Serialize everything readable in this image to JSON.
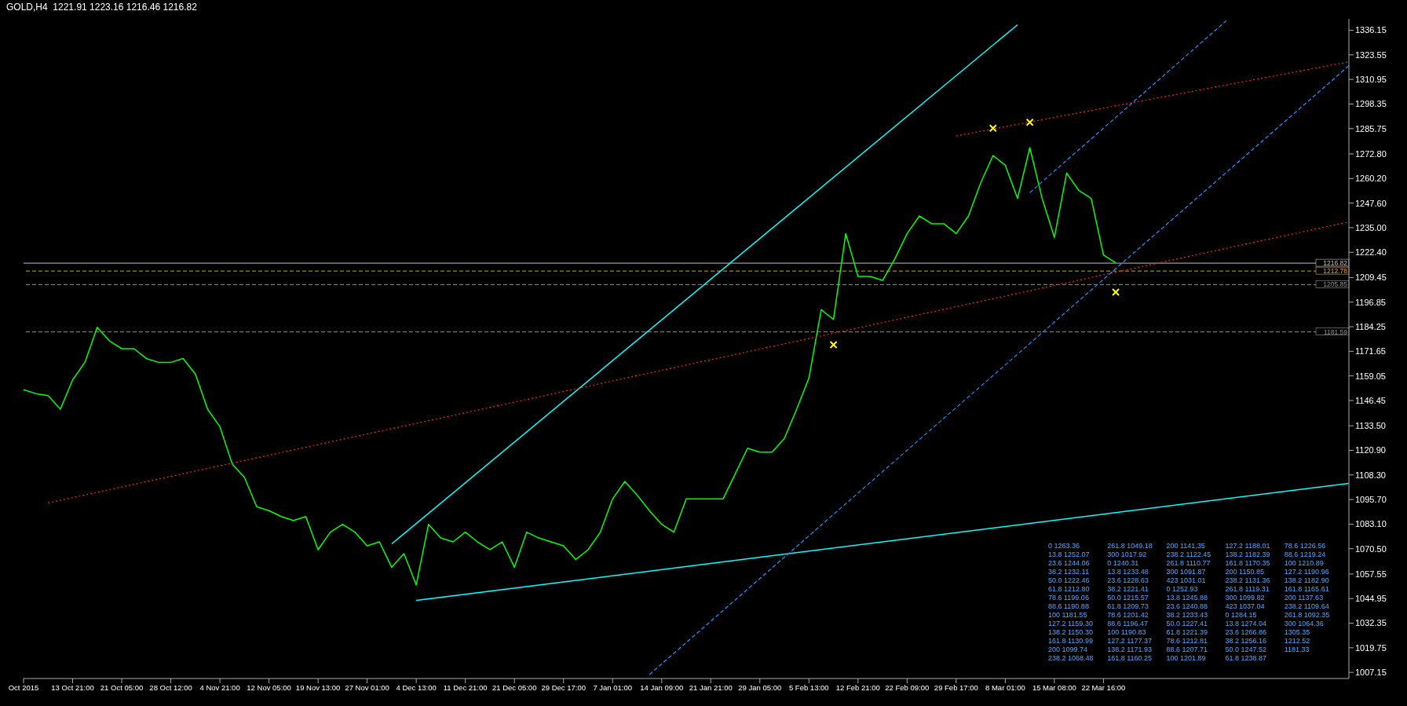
{
  "chart_data": {
    "type": "line",
    "title": "GOLD,H4  1221.91 1223.16 1216.46 1216.82",
    "categories": [
      "Oct 2015",
      null,
      null,
      null,
      "13 Oct 21:00",
      null,
      null,
      null,
      "21 Oct 05:00",
      null,
      null,
      null,
      "28 Oct 12:00",
      null,
      null,
      null,
      "4 Nov 21:00",
      null,
      null,
      null,
      "12 Nov 05:00",
      null,
      null,
      null,
      "19 Nov 13:00",
      null,
      null,
      null,
      "27 Nov 01:00",
      null,
      null,
      null,
      "4 Dec 13:00",
      null,
      null,
      null,
      "11 Dec 21:00",
      null,
      null,
      null,
      "21 Dec 05:00",
      null,
      null,
      null,
      "29 Dec 17:00",
      null,
      null,
      null,
      "7 Jan 01:00",
      null,
      null,
      null,
      "14 Jan 09:00",
      null,
      null,
      null,
      "21 Jan 21:00",
      null,
      null,
      null,
      "29 Jan 05:00",
      null,
      null,
      null,
      "5 Feb 13:00",
      null,
      null,
      null,
      "12 Feb 21:00",
      null,
      null,
      null,
      "22 Feb 09:00",
      null,
      null,
      null,
      "29 Feb 17:00",
      null,
      null,
      null,
      "8 Mar 01:00",
      null,
      null,
      null,
      "15 Mar 08:00",
      null,
      null,
      null,
      "22 Mar 16:00",
      null,
      null,
      null,
      null,
      null,
      null,
      null,
      null,
      null,
      null,
      null,
      null,
      null,
      null,
      null,
      null,
      null,
      null,
      null,
      null
    ],
    "ylim": [
      1004,
      1342
    ],
    "yticks": [
      {
        "value": 1007.15,
        "label": "1007.15"
      },
      {
        "value": 1019.75,
        "label": "1019.75"
      },
      {
        "value": 1032.35,
        "label": "1032.35"
      },
      {
        "value": 1044.95,
        "label": "1044.95"
      },
      {
        "value": 1057.55,
        "label": "1057.55"
      },
      {
        "value": 1070.5,
        "label": "1070.50"
      },
      {
        "value": 1083.1,
        "label": "1083.10"
      },
      {
        "value": 1095.7,
        "label": "1095.70"
      },
      {
        "value": 1108.3,
        "label": "1108.30"
      },
      {
        "value": 1120.9,
        "label": "1120.90"
      },
      {
        "value": 1133.5,
        "label": "1133.50"
      },
      {
        "value": 1146.45,
        "label": "1146.45"
      },
      {
        "value": 1159.05,
        "label": "1159.05"
      },
      {
        "value": 1171.65,
        "label": "1171.65"
      },
      {
        "value": 1184.25,
        "label": "1184.25"
      },
      {
        "value": 1196.85,
        "label": "1196.85"
      },
      {
        "value": 1209.45,
        "label": "1209.45"
      },
      {
        "value": 1222.4,
        "label": "1222.40"
      },
      {
        "value": 1235,
        "label": "1235.00"
      },
      {
        "value": 1247.6,
        "label": "1247.60"
      },
      {
        "value": 1260.2,
        "label": "1260.20"
      },
      {
        "value": 1272.8,
        "label": "1272.80"
      },
      {
        "value": 1285.75,
        "label": "1285.75"
      },
      {
        "value": 1298.35,
        "label": "1298.35"
      },
      {
        "value": 1310.95,
        "label": "1310.95"
      },
      {
        "value": 1323.55,
        "label": "1323.55"
      },
      {
        "value": 1336.15,
        "label": "1336.15"
      }
    ],
    "series": [
      {
        "color": "#00ff00",
        "values": [
          1152,
          1150,
          1149,
          1142,
          1157,
          1166,
          1184,
          1177,
          1173,
          1173,
          1168,
          1166,
          1166,
          1168,
          1160,
          1142,
          1133,
          1114,
          1107,
          1092,
          1090,
          1087,
          1085,
          1087,
          1070,
          1079,
          1083,
          1079,
          1072,
          1074,
          1061,
          1068,
          1052,
          1083,
          1076,
          1074,
          1079,
          1074,
          1070,
          1074,
          1061,
          1079,
          1076,
          1074,
          1072,
          1065,
          1070,
          1079,
          1096,
          1105,
          1098,
          1090,
          1083,
          1079,
          1096,
          1096,
          1096,
          1096,
          1109,
          1122,
          1120,
          1120,
          1127,
          1142,
          1158,
          1193,
          1188,
          1232,
          1210,
          1210,
          1208,
          1219,
          1232,
          1241,
          1237,
          1237,
          1232,
          1241,
          1258,
          1272,
          1267,
          1250,
          1276,
          1250,
          1230,
          1263,
          1254,
          1250,
          1221,
          1217,
          null,
          null,
          null,
          null,
          null,
          null,
          null,
          null,
          null,
          null,
          null,
          null,
          null,
          null,
          null,
          null,
          null,
          null,
          null
        ]
      },
      {
        "color": "#00ffff",
        "values": [
          null,
          null,
          null,
          null,
          null,
          null,
          null,
          null,
          null,
          null,
          null,
          null,
          null,
          null,
          null,
          null,
          null,
          null,
          null,
          null,
          null,
          null,
          null,
          null,
          null,
          null,
          null,
          null,
          null,
          null,
          1073,
          null,
          null,
          null,
          null,
          null,
          null,
          null,
          null,
          null,
          null,
          null,
          null,
          null,
          null,
          null,
          null,
          null,
          null,
          null,
          null,
          null,
          null,
          null,
          null,
          null,
          null,
          null,
          null,
          null,
          null,
          null,
          null,
          null,
          null,
          null,
          null,
          null,
          null,
          null,
          null,
          null,
          null,
          null,
          null,
          null,
          null,
          null,
          null,
          null,
          null,
          1339,
          null,
          null,
          null,
          null,
          null,
          null,
          null,
          null,
          null,
          null,
          null,
          null,
          null,
          null,
          null,
          null,
          null,
          null,
          null,
          null,
          null,
          null,
          null,
          null,
          null,
          null,
          null
        ]
      },
      {
        "color": "#00ffff",
        "values": [
          null,
          null,
          null,
          null,
          null,
          null,
          null,
          null,
          null,
          null,
          null,
          null,
          null,
          null,
          null,
          null,
          null,
          null,
          null,
          null,
          null,
          null,
          null,
          null,
          null,
          null,
          null,
          null,
          null,
          null,
          null,
          null,
          1044,
          null,
          null,
          null,
          null,
          null,
          null,
          null,
          null,
          null,
          null,
          null,
          null,
          null,
          null,
          null,
          null,
          null,
          null,
          null,
          null,
          null,
          null,
          null,
          null,
          null,
          null,
          null,
          null,
          null,
          null,
          null,
          null,
          null,
          null,
          null,
          null,
          null,
          null,
          null,
          null,
          null,
          null,
          null,
          null,
          null,
          null,
          null,
          null,
          null,
          null,
          null,
          null,
          null,
          null,
          null,
          null,
          null,
          null,
          null,
          null,
          null,
          null,
          null,
          null,
          null,
          null,
          null,
          null,
          null,
          null,
          null,
          null,
          null,
          null,
          null,
          1104
        ]
      },
      {
        "color": "#ff2020",
        "line_style": "dotted",
        "values": [
          null,
          null,
          1094,
          null,
          null,
          null,
          null,
          null,
          null,
          null,
          null,
          null,
          null,
          null,
          null,
          null,
          null,
          null,
          null,
          null,
          null,
          null,
          null,
          null,
          null,
          null,
          null,
          null,
          null,
          null,
          null,
          null,
          null,
          null,
          null,
          null,
          null,
          null,
          null,
          null,
          null,
          null,
          null,
          null,
          null,
          null,
          null,
          null,
          null,
          null,
          null,
          null,
          null,
          null,
          null,
          null,
          null,
          null,
          null,
          null,
          null,
          null,
          null,
          null,
          null,
          null,
          null,
          null,
          null,
          null,
          null,
          null,
          null,
          null,
          null,
          null,
          null,
          null,
          null,
          null,
          null,
          null,
          null,
          null,
          null,
          null,
          null,
          null,
          null,
          null,
          null,
          null,
          null,
          null,
          null,
          null,
          null,
          null,
          null,
          null,
          null,
          null,
          null,
          null,
          null,
          null,
          null,
          null,
          1238
        ]
      },
      {
        "color": "#ff2020",
        "line_style": "dotted",
        "values": [
          null,
          null,
          null,
          null,
          null,
          null,
          null,
          null,
          null,
          null,
          null,
          null,
          null,
          null,
          null,
          null,
          null,
          null,
          null,
          null,
          null,
          null,
          null,
          null,
          null,
          null,
          null,
          null,
          null,
          null,
          null,
          null,
          null,
          null,
          null,
          null,
          null,
          null,
          null,
          null,
          null,
          null,
          null,
          null,
          null,
          null,
          null,
          null,
          null,
          null,
          null,
          null,
          null,
          null,
          null,
          null,
          null,
          null,
          null,
          null,
          null,
          null,
          null,
          null,
          null,
          null,
          null,
          null,
          null,
          null,
          null,
          null,
          null,
          null,
          null,
          null,
          1282,
          null,
          null,
          null,
          null,
          null,
          null,
          null,
          null,
          null,
          null,
          null,
          null,
          null,
          null,
          null,
          null,
          null,
          null,
          null,
          null,
          null,
          null,
          null,
          null,
          null,
          null,
          null,
          null,
          null,
          null,
          null,
          1320
        ]
      },
      {
        "color": "#1e90ff",
        "line_style": "dashed",
        "values": [
          null,
          null,
          null,
          null,
          null,
          null,
          null,
          null,
          null,
          null,
          null,
          null,
          null,
          null,
          null,
          null,
          null,
          null,
          null,
          null,
          null,
          null,
          null,
          null,
          null,
          null,
          null,
          null,
          null,
          null,
          null,
          null,
          null,
          null,
          null,
          null,
          null,
          null,
          null,
          null,
          null,
          null,
          null,
          null,
          null,
          null,
          null,
          null,
          null,
          null,
          null,
          1006,
          null,
          null,
          null,
          null,
          null,
          null,
          null,
          null,
          null,
          null,
          null,
          null,
          null,
          null,
          null,
          null,
          null,
          null,
          null,
          null,
          null,
          null,
          null,
          null,
          null,
          null,
          null,
          null,
          null,
          null,
          null,
          null,
          null,
          null,
          null,
          null,
          null,
          null,
          null,
          null,
          null,
          null,
          null,
          null,
          null,
          null,
          null,
          null,
          null,
          null,
          null,
          null,
          null,
          null,
          null,
          null,
          1318
        ]
      },
      {
        "color": "#1e90ff",
        "line_style": "dashed",
        "values": [
          null,
          null,
          null,
          null,
          null,
          null,
          null,
          null,
          null,
          null,
          null,
          null,
          null,
          null,
          null,
          null,
          null,
          null,
          null,
          null,
          null,
          null,
          null,
          null,
          null,
          null,
          null,
          null,
          null,
          null,
          null,
          null,
          null,
          null,
          null,
          null,
          null,
          null,
          null,
          null,
          null,
          null,
          null,
          null,
          null,
          null,
          null,
          null,
          null,
          null,
          null,
          null,
          null,
          null,
          null,
          null,
          null,
          null,
          null,
          null,
          null,
          null,
          null,
          null,
          null,
          null,
          null,
          null,
          null,
          null,
          null,
          null,
          null,
          null,
          null,
          null,
          null,
          null,
          null,
          null,
          null,
          null,
          1253,
          null,
          null,
          null,
          null,
          null,
          null,
          null,
          null,
          null,
          null,
          null,
          null,
          null,
          null,
          null,
          1341,
          null,
          null,
          null,
          null,
          null,
          null,
          null,
          null,
          null,
          null
        ]
      },
      {
        "type": "scatter",
        "color": "#ffff00",
        "marker": "cross",
        "values": [
          null,
          null,
          null,
          null,
          null,
          null,
          null,
          null,
          null,
          null,
          null,
          null,
          null,
          null,
          null,
          null,
          null,
          null,
          null,
          null,
          null,
          null,
          null,
          null,
          null,
          null,
          null,
          null,
          null,
          null,
          null,
          null,
          null,
          null,
          null,
          null,
          null,
          null,
          null,
          null,
          null,
          null,
          null,
          null,
          null,
          null,
          null,
          null,
          null,
          null,
          null,
          null,
          null,
          null,
          null,
          null,
          null,
          null,
          null,
          null,
          null,
          null,
          null,
          null,
          null,
          null,
          1175,
          null,
          null,
          null,
          null,
          null,
          null,
          null,
          null,
          null,
          null,
          null,
          null,
          1286,
          null,
          null,
          1289,
          null,
          null,
          null,
          null,
          null,
          null,
          1202,
          null,
          null,
          null,
          null,
          null,
          null,
          null,
          null,
          null,
          null,
          null,
          null,
          null,
          null,
          null,
          null,
          null,
          null,
          null
        ]
      }
    ],
    "ref_lines": [
      {
        "axis": "y",
        "value": 1216.82,
        "label": "1216.82",
        "color": "#c0c0c0",
        "line_style": "solid"
      },
      {
        "axis": "y",
        "value": 1212.78,
        "label": "1212.78",
        "color": "#daa520",
        "line_style": "dashed"
      },
      {
        "axis": "y",
        "value": 1205.85,
        "label": "1205.85",
        "color": "#909090",
        "line_style": "dashed"
      },
      {
        "axis": "y",
        "value": 1181.59,
        "label": "1181.59",
        "color": "#909090",
        "line_style": "dashed"
      }
    ],
    "annotations": [
      "0 1263.36",
      "13.8 1252.07",
      "23.6 1244.06",
      "38.2 1232.11",
      "50.0 1222.46",
      "61.8 1212.80",
      "78.6 1199.06",
      "88.6 1190.88",
      "100 1181.55",
      "127.2 1159.30",
      "138.2 1150.30",
      "161.8 1130.99",
      "200 1099.74",
      "238.2 1068.48",
      "261.8 1049.18",
      "300 1017.92",
      "0 1240.31",
      "13.8 1233.48",
      "23.6 1228.63",
      "38.2 1221.41",
      "50.0 1215.57",
      "61.8 1209.73",
      "78.6 1201.42",
      "88.6 1196.47",
      "100 1190.83",
      "127.2 1177.37",
      "138.2 1171.93",
      "161.8 1160.25",
      "200 1141.35",
      "238.2 1122.45",
      "261.8 1110.77",
      "300 1091.87",
      "423 1031.01",
      "0 1252.93",
      "13.8 1245.88",
      "23.6 1240.88",
      "38.2 1233.43",
      "50.0 1227.41",
      "61.8 1221.39",
      "78.6 1212.81",
      "88.6 1207.71",
      "100 1201.89",
      "127.2 1188.01",
      "138.2 1182.39",
      "161.8 1170.35",
      "200 1150.85",
      "238.2 1131.36",
      "261.8 1119.31",
      "300 1099.82",
      "423 1037.04",
      "0 1284.15",
      "13.8 1274.04",
      "23.6 1266.86",
      "38.2 1256.16",
      "50.0 1247.52",
      "61.8 1238.87",
      "78.6 1226.56",
      "88.6 1219.24",
      "100 1210.89",
      "127.2 1190.96",
      "138.2 1182.90",
      "161.8 1165.61",
      "200 1137.63",
      "238.2 1109.64",
      "261.8 1092.35",
      "300 1064.36",
      "1305.35",
      "1212.52",
      "1181.33"
    ]
  }
}
